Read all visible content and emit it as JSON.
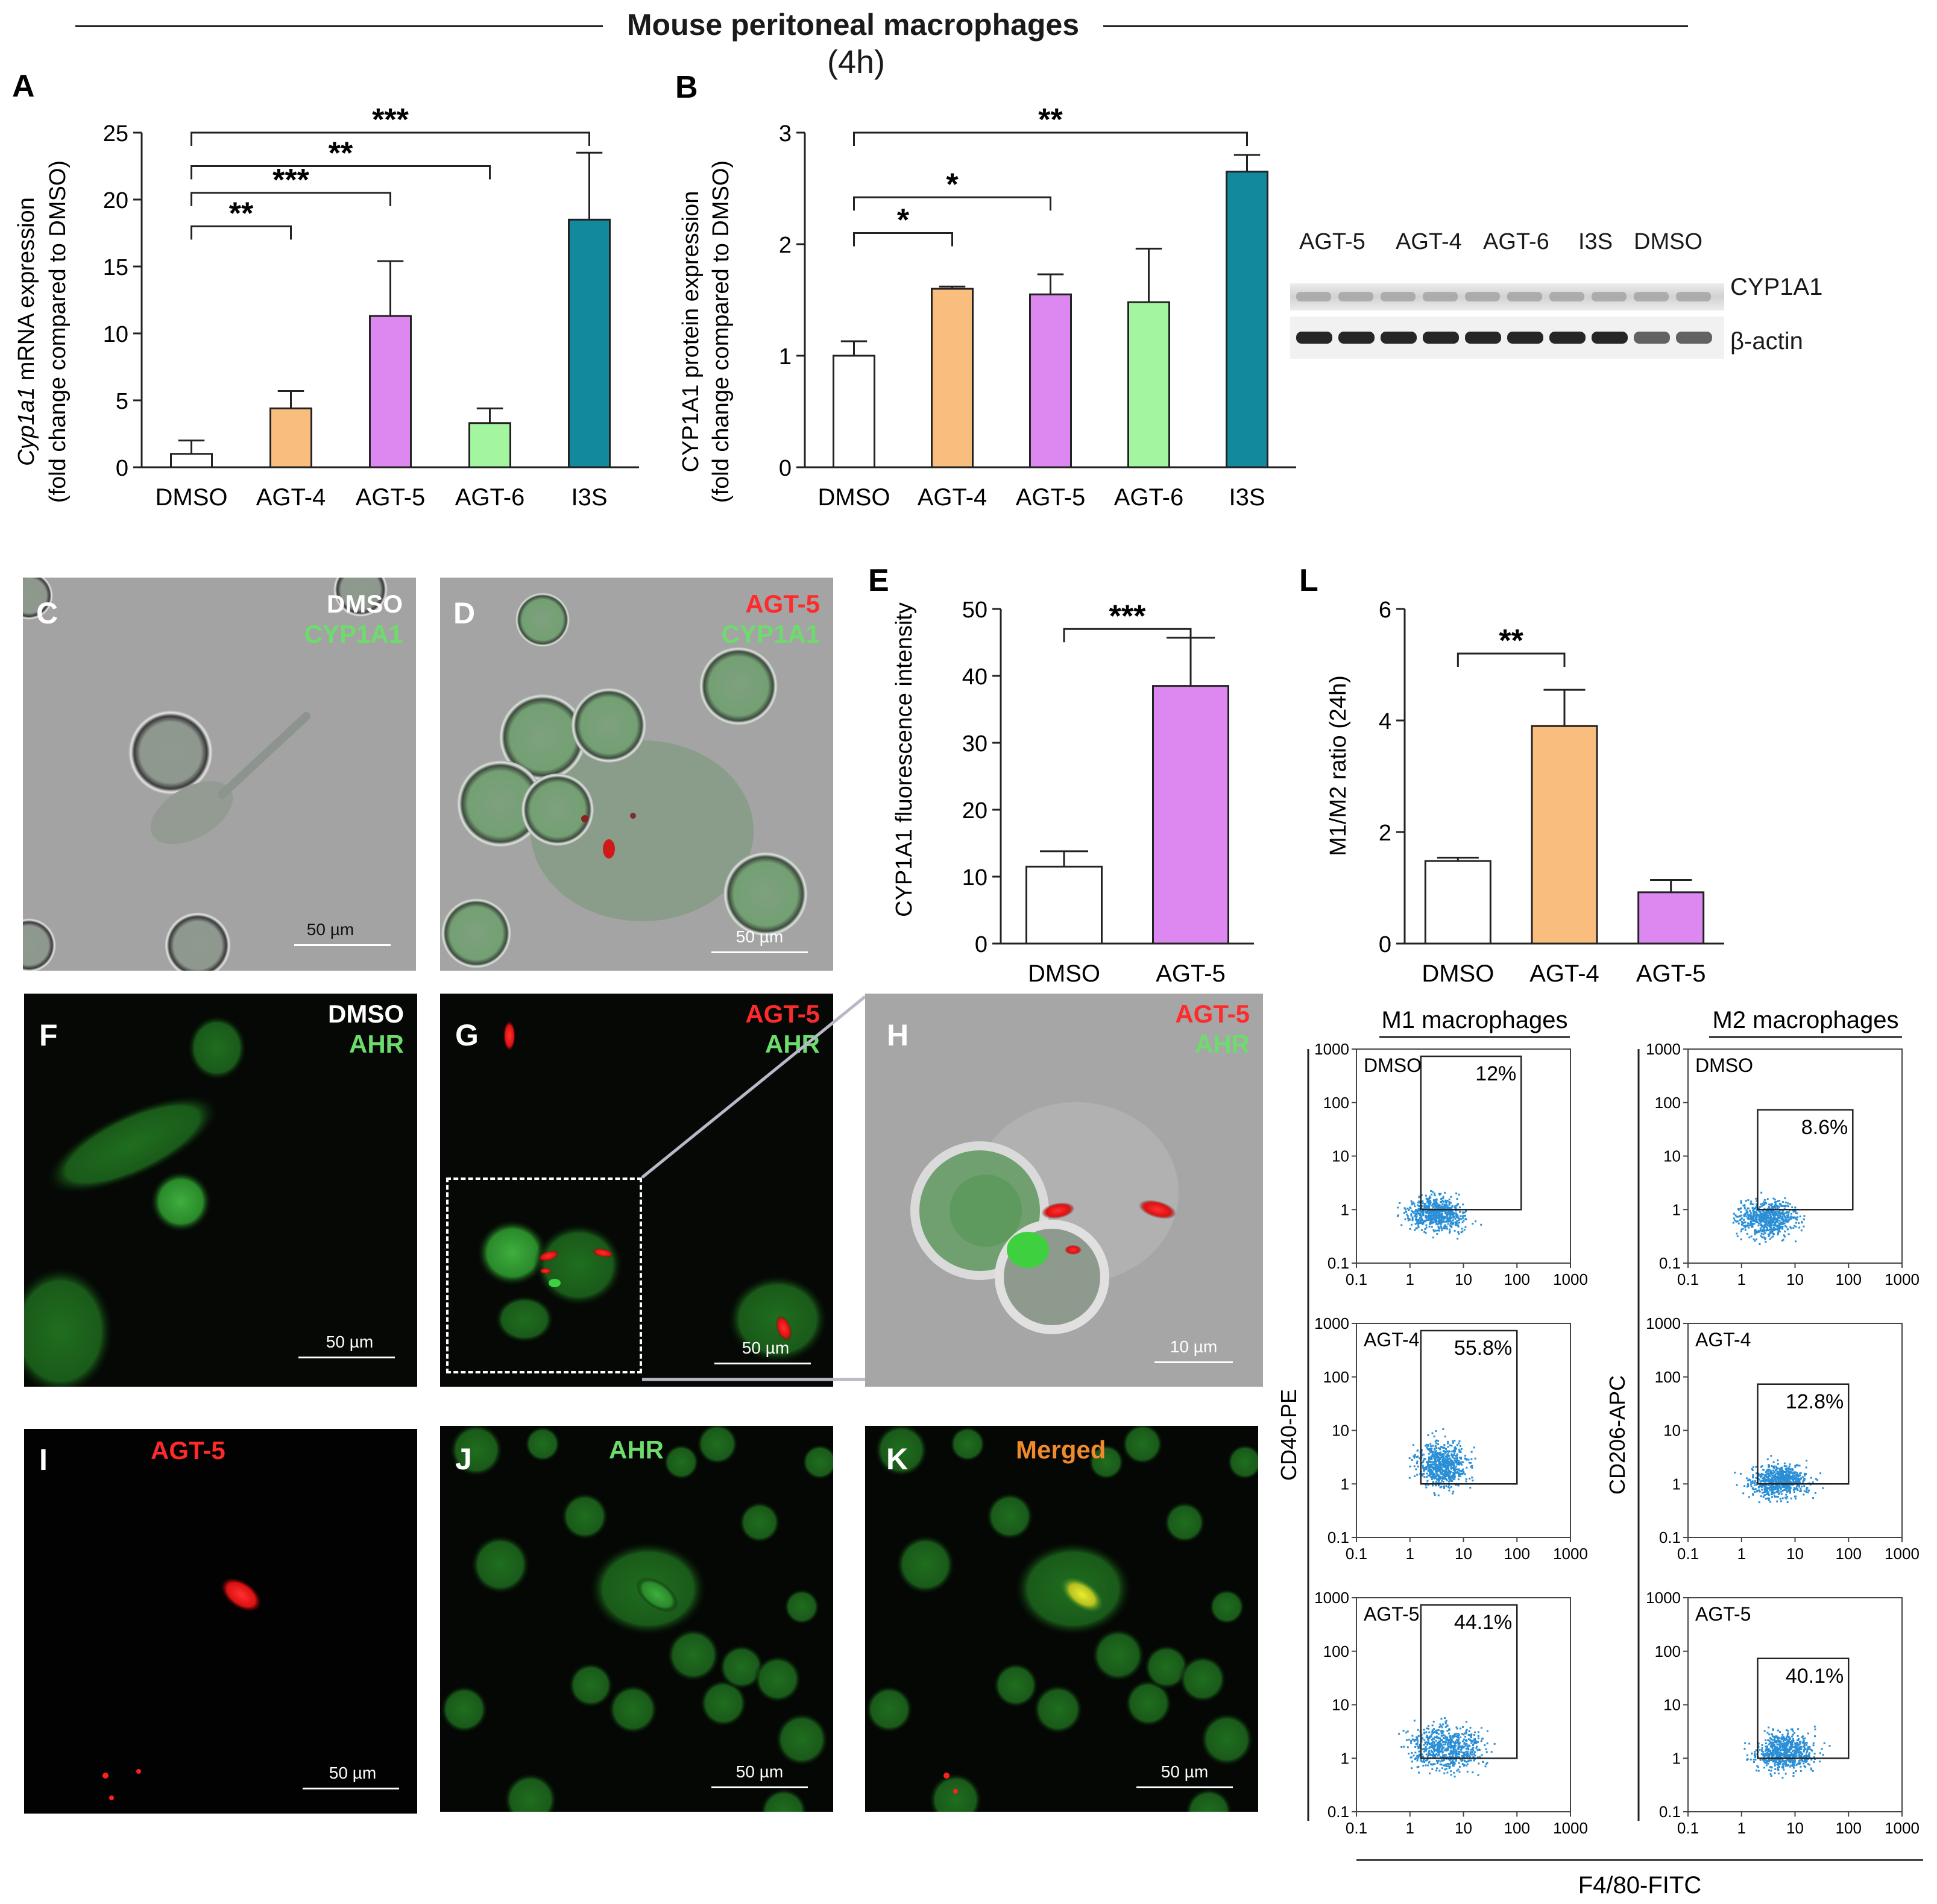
{
  "figure": {
    "title": "Mouse peritoneal macrophages",
    "subtitle": "(4h)"
  },
  "colors": {
    "DMSO": "#ffffff",
    "AGT-4": "#f9bd7e",
    "AGT-5": "#dd88f0",
    "AGT-6": "#a4f5a0",
    "I3S": "#13899e",
    "red_channel": "#ff2626",
    "green_channel": "#6ddc6d",
    "merged_channel": "#f08a2a",
    "flow_dots": "#2a8fd6"
  },
  "panelA": {
    "letter": "A",
    "ylabel_italic": "Cyp1a1",
    "ylabel_rest": " mRNA expression",
    "ylabel2": "(fold change compared to DMSO)",
    "ticks": [
      "0",
      "5",
      "10",
      "15",
      "20",
      "25"
    ],
    "sig": [
      "**",
      "***",
      "**",
      "***"
    ]
  },
  "panelB": {
    "letter": "B",
    "ylabel": "CYP1A1 protein expression",
    "ylabel2": "(fold change compared to DMSO)",
    "ticks": [
      "0",
      "1",
      "2",
      "3"
    ],
    "sig": [
      "*",
      "*",
      "**"
    ]
  },
  "blot": {
    "lanes": [
      "AGT-5",
      "AGT-4",
      "AGT-6",
      "I3S",
      "DMSO"
    ],
    "band1": "CYP1A1",
    "band2": "β-actin"
  },
  "panelE": {
    "letter": "E",
    "ylabel": "CYP1A1 fluorescence intensity",
    "ticks": [
      "0",
      "10",
      "20",
      "30",
      "40",
      "50"
    ],
    "sig": "***"
  },
  "panelL": {
    "letter": "L",
    "ylabel": "M1/M2 ratio (24h)",
    "ticks": [
      "0",
      "2",
      "4",
      "6"
    ],
    "sig": "**"
  },
  "chart_data": [
    {
      "id": "A",
      "type": "bar",
      "categories": [
        "DMSO",
        "AGT-4",
        "AGT-5",
        "AGT-6",
        "I3S"
      ],
      "values": [
        1,
        4.4,
        11.3,
        3.3,
        18.5
      ],
      "errors": [
        1.0,
        1.3,
        4.1,
        1.1,
        5.0
      ],
      "ylim": [
        0,
        25
      ],
      "ylabel": "Cyp1a1 mRNA expression (fold change compared to DMSO)"
    },
    {
      "id": "B",
      "type": "bar",
      "categories": [
        "DMSO",
        "AGT-4",
        "AGT-5",
        "AGT-6",
        "I3S"
      ],
      "values": [
        1,
        1.6,
        1.55,
        1.48,
        2.65
      ],
      "errors": [
        0.13,
        0.02,
        0.18,
        0.48,
        0.15
      ],
      "ylim": [
        0,
        3
      ],
      "ylabel": "CYP1A1 protein expression (fold change compared to DMSO)"
    },
    {
      "id": "E",
      "type": "bar",
      "categories": [
        "DMSO",
        "AGT-5"
      ],
      "values": [
        11.5,
        38.5
      ],
      "errors": [
        2.3,
        7.2
      ],
      "ylim": [
        0,
        50
      ],
      "ylabel": "CYP1A1 fluorescence intensity"
    },
    {
      "id": "L",
      "type": "bar",
      "categories": [
        "DMSO",
        "AGT-4",
        "AGT-5"
      ],
      "values": [
        1.48,
        3.9,
        0.92
      ],
      "errors": [
        0.06,
        0.65,
        0.22
      ],
      "ylim": [
        0,
        6
      ],
      "ylabel": "M1/M2 ratio (24h)"
    }
  ],
  "micrographs": {
    "C": {
      "letter": "C",
      "line1": "DMSO",
      "line2": "CYP1A1",
      "scale": "50 µm"
    },
    "D": {
      "letter": "D",
      "line1": "AGT-5",
      "line2": "CYP1A1",
      "scale": "50 µm"
    },
    "F": {
      "letter": "F",
      "line1": "DMSO",
      "line2": "AHR",
      "scale": "50 µm"
    },
    "G": {
      "letter": "G",
      "line1": "AGT-5",
      "line2": "AHR",
      "scale": "50 µm"
    },
    "H": {
      "letter": "H",
      "line1": "AGT-5",
      "line2": "AHR",
      "scale": "10 µm"
    },
    "I": {
      "letter": "I",
      "line1": "AGT-5",
      "scale": "50 µm"
    },
    "J": {
      "letter": "J",
      "line1": "AHR",
      "scale": "50 µm"
    },
    "K": {
      "letter": "K",
      "line1": "Merged",
      "scale": "50 µm"
    }
  },
  "flow": {
    "col1_title": "M1 macrophages",
    "col2_title": "M2 macrophages",
    "ylabel1": "CD40-PE",
    "ylabel2": "CD206-APC",
    "xlabel": "F4/80-FITC",
    "ticks": [
      "0.1",
      "1",
      "10",
      "100",
      "1000"
    ],
    "m1": [
      {
        "label": "DMSO",
        "pct": "12%"
      },
      {
        "label": "AGT-4",
        "pct": "55.8%"
      },
      {
        "label": "AGT-5",
        "pct": "44.1%"
      }
    ],
    "m2": [
      {
        "label": "DMSO",
        "pct": "8.6%"
      },
      {
        "label": "AGT-4",
        "pct": "12.8%"
      },
      {
        "label": "AGT-5",
        "pct": "40.1%"
      }
    ]
  }
}
